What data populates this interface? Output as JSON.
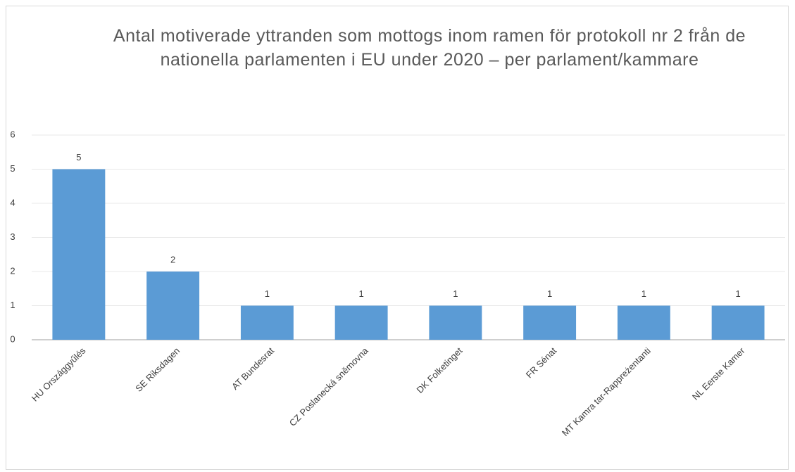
{
  "chart_data": {
    "type": "bar",
    "title": "Antal motiverade yttranden som mottogs inom ramen för protokoll nr 2 från de nationella parlamenten i EU under 2020 – per parlament/kammare",
    "categories": [
      "HU Országgyűlés",
      "SE Riksdagen",
      "AT Bundesrat",
      "CZ Poslanecká sněmovna",
      "DK Folketinget",
      "FR Sénat",
      "MT Kamra tar-Rappreżentanti",
      "NL Eerste Kamer"
    ],
    "values": [
      5,
      2,
      1,
      1,
      1,
      1,
      1,
      1
    ],
    "color": "#5b9bd5",
    "ylim": [
      0,
      6
    ],
    "yticks": [
      0,
      1,
      2,
      3,
      4,
      5,
      6
    ],
    "grid": true
  }
}
